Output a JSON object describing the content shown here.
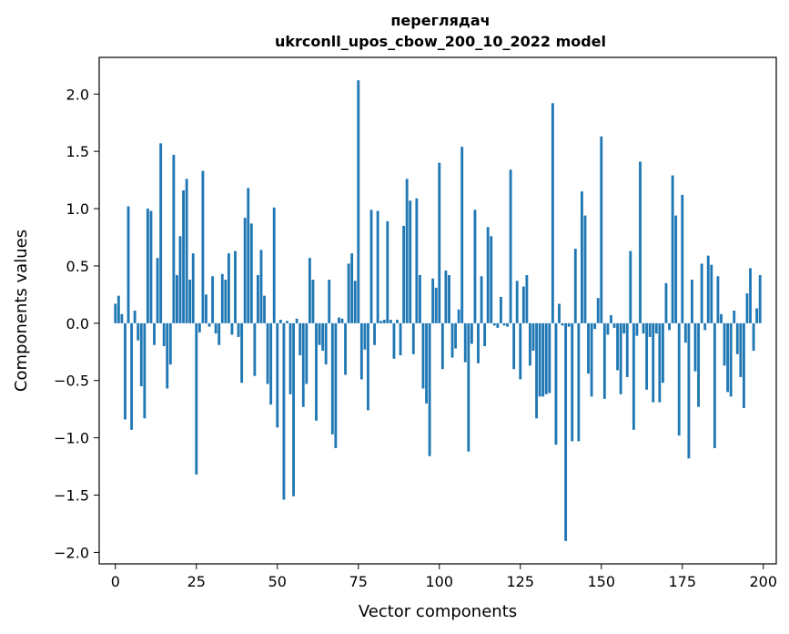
{
  "chart_data": {
    "type": "bar",
    "title_line1": "переглядач",
    "title_line2": "ukrconll_upos_cbow_200_10_2022 model",
    "xlabel": "Vector components",
    "ylabel": "Components values",
    "xlim": [
      -5,
      204
    ],
    "ylim": [
      -2.1,
      2.32
    ],
    "xticks": [
      0,
      25,
      50,
      75,
      100,
      125,
      150,
      175,
      200
    ],
    "xtick_labels": [
      "0",
      "25",
      "50",
      "75",
      "100",
      "125",
      "150",
      "175",
      "200"
    ],
    "yticks": [
      -2.0,
      -1.5,
      -1.0,
      -0.5,
      0.0,
      0.5,
      1.0,
      1.5,
      2.0
    ],
    "ytick_labels": [
      "−2.0",
      "−1.5",
      "−1.0",
      "−0.5",
      "0.0",
      "0.5",
      "1.0",
      "1.5",
      "2.0"
    ],
    "grid": false,
    "legend": "none",
    "bar_color": "#1f77b4",
    "values": [
      0.17,
      0.24,
      0.08,
      -0.84,
      1.02,
      -0.93,
      0.11,
      -0.15,
      -0.55,
      -0.83,
      1.0,
      0.98,
      -0.19,
      0.57,
      1.57,
      -0.2,
      -0.57,
      -0.36,
      1.47,
      0.42,
      0.76,
      1.16,
      1.26,
      0.38,
      0.61,
      -1.32,
      -0.08,
      1.33,
      0.25,
      -0.03,
      0.41,
      -0.09,
      -0.19,
      0.43,
      0.38,
      0.61,
      -0.1,
      0.63,
      -0.12,
      -0.52,
      0.92,
      1.18,
      0.87,
      -0.46,
      0.42,
      0.64,
      0.24,
      -0.53,
      -0.71,
      1.01,
      -0.91,
      0.03,
      -1.54,
      0.02,
      -0.62,
      -1.51,
      0.04,
      -0.28,
      -0.73,
      -0.53,
      0.57,
      0.38,
      -0.85,
      -0.19,
      -0.24,
      -0.36,
      0.38,
      -0.97,
      -1.09,
      0.05,
      0.04,
      -0.45,
      0.52,
      0.61,
      0.37,
      2.12,
      -0.49,
      -0.23,
      -0.76,
      0.99,
      -0.19,
      0.98,
      0.02,
      0.03,
      0.89,
      0.03,
      -0.31,
      0.03,
      -0.28,
      0.85,
      1.26,
      1.07,
      -0.27,
      1.09,
      0.42,
      -0.57,
      -0.7,
      -1.16,
      0.39,
      0.31,
      1.4,
      -0.4,
      0.46,
      0.42,
      -0.3,
      -0.22,
      0.12,
      1.54,
      -0.34,
      -1.12,
      -0.18,
      0.99,
      -0.35,
      0.41,
      -0.2,
      0.84,
      0.76,
      -0.02,
      -0.04,
      0.23,
      -0.02,
      -0.03,
      1.34,
      -0.4,
      0.37,
      -0.49,
      0.32,
      0.42,
      -0.37,
      -0.24,
      -0.83,
      -0.64,
      -0.64,
      -0.62,
      -0.61,
      1.92,
      -1.06,
      0.17,
      -0.02,
      -1.9,
      -0.03,
      -1.03,
      0.65,
      -1.03,
      1.15,
      0.94,
      -0.44,
      -0.64,
      -0.05,
      0.22,
      1.63,
      -0.66,
      -0.1,
      0.07,
      -0.04,
      -0.41,
      -0.62,
      -0.09,
      -0.47,
      0.63,
      -0.93,
      -0.11,
      1.41,
      -0.09,
      -0.58,
      -0.12,
      -0.69,
      -0.09,
      -0.69,
      -0.52,
      0.35,
      -0.06,
      1.29,
      0.94,
      -0.98,
      1.12,
      -0.17,
      -1.18,
      0.38,
      -0.42,
      -0.73,
      0.52,
      -0.06,
      0.59,
      0.51,
      -1.09,
      0.41,
      0.08,
      -0.37,
      -0.6,
      -0.64,
      0.11,
      -0.27,
      -0.47,
      -0.74,
      0.26,
      0.48,
      -0.24,
      0.13,
      0.42
    ]
  }
}
